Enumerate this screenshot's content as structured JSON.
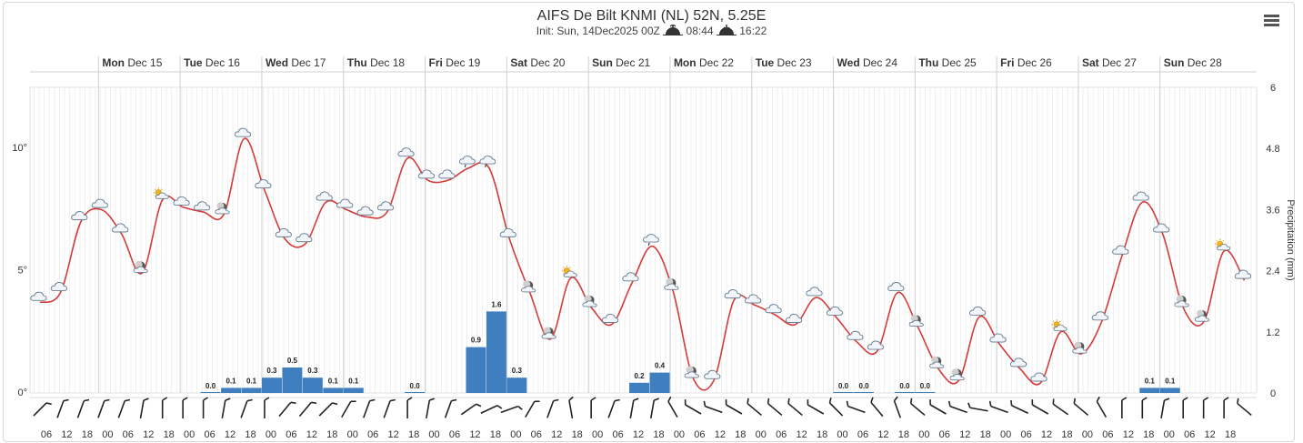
{
  "header": {
    "title": "AIFS De Bilt KNMI (NL) 52N, 5.25E",
    "init_text": "Init: Sun, 14Dec2025 00Z",
    "sunrise": "08:44",
    "sunset": "16:22"
  },
  "menu": {
    "icon": "hamburger-menu-icon"
  },
  "chart_data": {
    "type": "line",
    "x_start": "2025-12-14 06:00",
    "step_hours": 6,
    "days": [
      {
        "day": "Mon",
        "date": "Dec 15"
      },
      {
        "day": "Tue",
        "date": "Dec 16"
      },
      {
        "day": "Wed",
        "date": "Dec 17"
      },
      {
        "day": "Thu",
        "date": "Dec 18"
      },
      {
        "day": "Fri",
        "date": "Dec 19"
      },
      {
        "day": "Sat",
        "date": "Dec 20"
      },
      {
        "day": "Sun",
        "date": "Dec 21"
      },
      {
        "day": "Mon",
        "date": "Dec 22"
      },
      {
        "day": "Tue",
        "date": "Dec 23"
      },
      {
        "day": "Wed",
        "date": "Dec 24"
      },
      {
        "day": "Thu",
        "date": "Dec 25"
      },
      {
        "day": "Fri",
        "date": "Dec 26"
      },
      {
        "day": "Sat",
        "date": "Dec 27"
      },
      {
        "day": "Sun",
        "date": "Dec 28"
      }
    ],
    "hour_labels": [
      "06",
      "12",
      "18",
      "00",
      "06",
      "12",
      "18",
      "00",
      "06",
      "12",
      "18",
      "00",
      "06",
      "12",
      "18",
      "00",
      "06",
      "12",
      "18",
      "00",
      "06",
      "12",
      "18",
      "00",
      "06",
      "12",
      "18",
      "00",
      "06",
      "12",
      "18",
      "00",
      "06",
      "12",
      "18",
      "00",
      "06",
      "12",
      "18",
      "00",
      "06",
      "12",
      "18",
      "00",
      "06",
      "12",
      "18",
      "00",
      "06",
      "12",
      "18",
      "00",
      "06",
      "12",
      "18",
      "00",
      "06",
      "12",
      "18"
    ],
    "temperature": [
      3.7,
      4.1,
      7.0,
      7.5,
      6.5,
      4.9,
      7.9,
      7.6,
      7.4,
      7.3,
      10.4,
      8.3,
      6.3,
      6.1,
      7.8,
      7.5,
      7.2,
      7.4,
      9.6,
      8.7,
      8.7,
      9.2,
      9.2,
      6.3,
      4.1,
      2.2,
      4.7,
      3.5,
      2.8,
      4.5,
      6.0,
      4.2,
      0.6,
      0.5,
      3.8,
      3.6,
      3.2,
      2.8,
      3.9,
      3.1,
      2.1,
      1.7,
      4.1,
      2.7,
      1.0,
      0.5,
      3.1,
      2.0,
      1.0,
      0.4,
      2.5,
      1.6,
      2.9,
      5.6,
      7.8,
      6.5,
      3.5,
      2.9,
      5.8,
      4.6
    ],
    "precipitation": [
      null,
      null,
      null,
      null,
      null,
      null,
      null,
      null,
      0.0,
      0.1,
      0.1,
      0.3,
      0.5,
      0.3,
      0.1,
      0.1,
      null,
      null,
      0.0,
      null,
      null,
      0.9,
      1.6,
      0.3,
      null,
      null,
      null,
      null,
      null,
      0.2,
      0.4,
      null,
      null,
      null,
      null,
      null,
      null,
      null,
      null,
      0.0,
      0.0,
      null,
      0.0,
      0.0,
      null,
      null,
      null,
      null,
      null,
      null,
      null,
      null,
      null,
      null,
      0.1,
      0.1,
      null,
      null,
      null,
      null
    ],
    "left_axis": {
      "ticks": [
        "0°",
        "5°",
        "10°"
      ],
      "ylim": [
        0,
        12.5
      ]
    },
    "right_axis": {
      "label": "Precipitation (mm)",
      "ticks": [
        "0",
        "1.2",
        "2.4",
        "3.6",
        "4.8",
        "6"
      ],
      "ylim": [
        0,
        6
      ]
    },
    "colors": {
      "temperature": "#d43b3b",
      "precipitation": "#3f7fbf",
      "grid": "#e6e6e6"
    },
    "weather_icons": [
      "cloud",
      "cloud",
      "cloud",
      "cloud",
      "cloud",
      "moon-cloud",
      "sun-cloud",
      "cloud",
      "cloud",
      "moon-cloud",
      "cloud",
      "cloud",
      "cloud",
      "cloud",
      "cloud",
      "cloud",
      "cloud",
      "cloud",
      "cloud",
      "cloud",
      "cloud",
      "rain-cloud",
      "rain-cloud",
      "cloud",
      "moon-cloud",
      "moon-cloud",
      "sun-cloud",
      "moon-cloud",
      "cloud",
      "cloud",
      "rain-cloud",
      "moon-cloud",
      "moon-cloud",
      "cloud",
      "cloud",
      "cloud",
      "cloud",
      "cloud",
      "cloud",
      "cloud",
      "cloud",
      "cloud",
      "cloud",
      "moon-cloud",
      "moon-cloud",
      "moon-cloud",
      "cloud",
      "cloud",
      "cloud",
      "cloud",
      "sun-cloud",
      "moon-cloud",
      "cloud",
      "cloud",
      "cloud",
      "cloud",
      "moon-cloud",
      "moon-cloud",
      "sun-cloud",
      "cloud"
    ],
    "wind_direction_deg": [
      225,
      200,
      200,
      200,
      200,
      190,
      180,
      180,
      180,
      190,
      200,
      180,
      220,
      220,
      225,
      210,
      200,
      200,
      180,
      190,
      200,
      235,
      245,
      250,
      210,
      200,
      170,
      180,
      200,
      190,
      190,
      150,
      120,
      110,
      120,
      130,
      130,
      130,
      120,
      135,
      110,
      140,
      160,
      130,
      120,
      110,
      100,
      110,
      115,
      120,
      125,
      130,
      150,
      180,
      180,
      190,
      180,
      180,
      180,
      130
    ]
  }
}
